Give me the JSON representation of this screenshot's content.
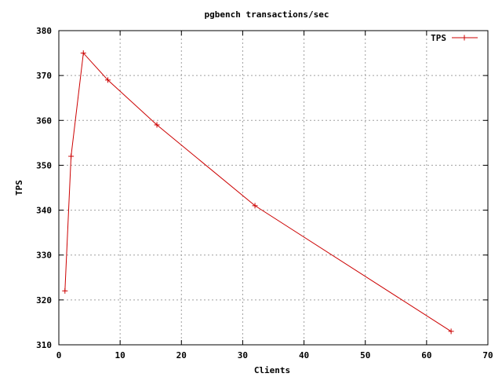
{
  "chart_data": {
    "type": "line",
    "title": "pgbench transactions/sec",
    "xlabel": "Clients",
    "ylabel": "TPS",
    "xlim": [
      0,
      70
    ],
    "ylim": [
      310,
      380
    ],
    "xticks": [
      0,
      10,
      20,
      30,
      40,
      50,
      60,
      70
    ],
    "yticks": [
      310,
      320,
      330,
      340,
      350,
      360,
      370,
      380
    ],
    "grid": true,
    "legend_position": "top-right",
    "series": [
      {
        "name": "TPS",
        "color": "#cc0000",
        "marker": "plus",
        "x": [
          1,
          2,
          4,
          8,
          16,
          32,
          64
        ],
        "y": [
          322,
          352,
          375,
          369,
          359,
          341,
          313
        ]
      }
    ]
  }
}
